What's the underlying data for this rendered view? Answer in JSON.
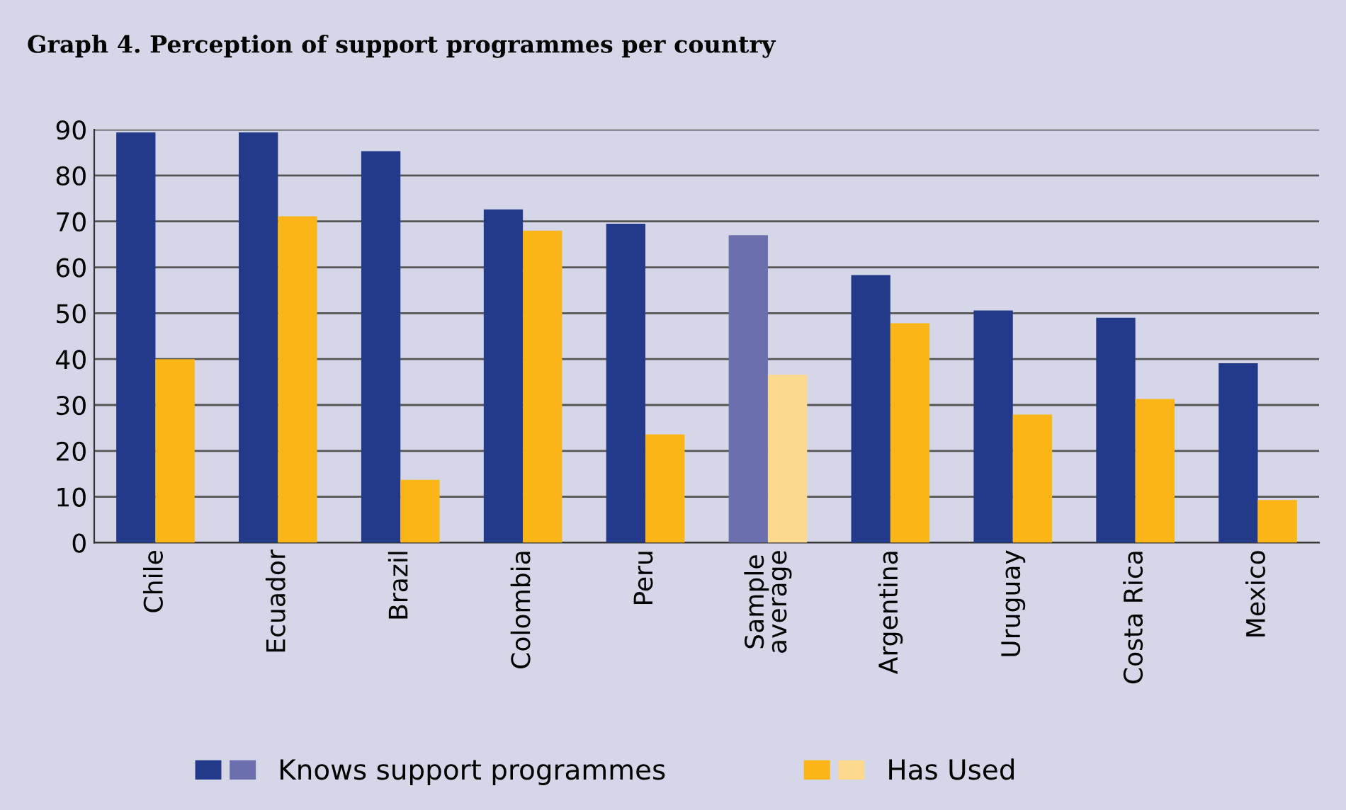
{
  "chart_data": {
    "type": "bar",
    "title": "Graph 4. Perception of support programmes per country",
    "categories": [
      "Chile",
      "Ecuador",
      "Brazil",
      "Colombia",
      "Peru",
      "Sample\naverage",
      "Argentina",
      "Uruguay",
      "Costa Rica",
      "Mexico"
    ],
    "series": [
      {
        "name": "Knows support programmes",
        "colors": [
          "#233a8b",
          "#233a8b",
          "#233a8b",
          "#233a8b",
          "#233a8b",
          "#6b6fae",
          "#233a8b",
          "#233a8b",
          "#233a8b",
          "#233a8b"
        ],
        "values": [
          89.4,
          89.4,
          85.3,
          72.6,
          69.5,
          67.0,
          58.3,
          50.6,
          49.0,
          39.1
        ]
      },
      {
        "name": "Has Used",
        "colors": [
          "#fbb516",
          "#fbb516",
          "#fbb516",
          "#fbb516",
          "#fbb516",
          "#fdd88f",
          "#fbb516",
          "#fbb516",
          "#fbb516",
          "#fbb516"
        ],
        "values": [
          40.0,
          71.1,
          13.7,
          68.0,
          23.6,
          36.6,
          47.8,
          27.9,
          31.3,
          9.3
        ]
      }
    ],
    "ylim": [
      0,
      90
    ],
    "yticks": [
      0,
      10,
      20,
      30,
      40,
      50,
      60,
      70,
      80,
      90
    ],
    "grid": "y",
    "legend": "bottom"
  }
}
